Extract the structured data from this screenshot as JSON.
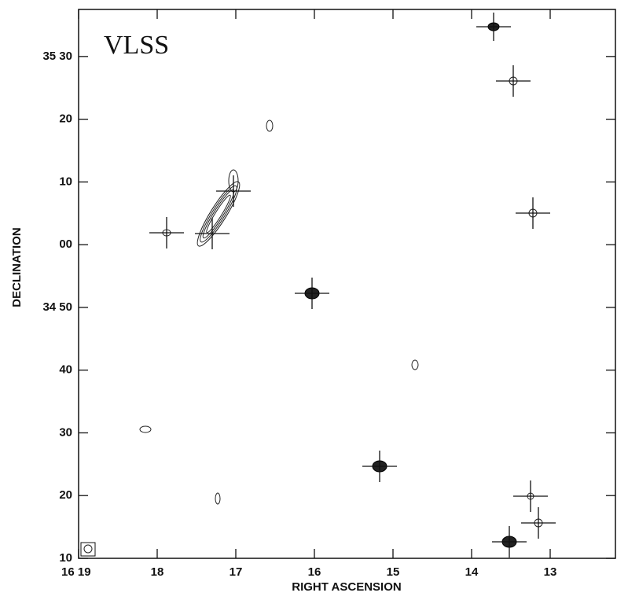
{
  "chart_data": {
    "type": "contour_map",
    "annotation": "VLSS",
    "xlabel": "RIGHT ASCENSION",
    "ylabel": "DECLINATION",
    "xlim": [
      19,
      12.17
    ],
    "xticks": [
      {
        "value": 19,
        "label": "16 19"
      },
      18,
      17,
      16,
      15,
      14,
      13
    ],
    "ylim": [
      10,
      97.5
    ],
    "yticks": [
      10,
      20,
      30,
      40,
      {
        "value": 50,
        "label": "34 50"
      },
      {
        "value": 60,
        "label": "00"
      },
      {
        "value": 70,
        "label": "10"
      },
      {
        "value": 80,
        "label": "20"
      },
      {
        "value": 90,
        "label": "35 30"
      }
    ]
  }
}
